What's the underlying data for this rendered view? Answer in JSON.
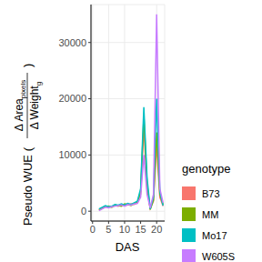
{
  "chart_data": {
    "type": "line",
    "x_label": "DAS",
    "y_label": {
      "prefix": "Pseudo WUE (",
      "numerator": "Δ Area",
      "numerator_sub": "pixels",
      "denominator": "Δ Weight",
      "denominator_sub": "g",
      "suffix": ")"
    },
    "legend_title": "genotype",
    "legend": "right",
    "grid": true,
    "x": [
      2,
      3,
      4,
      5,
      6,
      7,
      8,
      9,
      10,
      11,
      12,
      13,
      14,
      15,
      16,
      17,
      18,
      19,
      20,
      21,
      22
    ],
    "series": [
      {
        "name": "B73",
        "color": "#F8766D",
        "values": [
          300,
          600,
          900,
          700,
          800,
          1000,
          900,
          1200,
          1000,
          1100,
          1300,
          1200,
          1500,
          3000,
          15000,
          4000,
          500,
          1800,
          12000,
          2500,
          900
        ]
      },
      {
        "name": "MM",
        "color": "#7CAE00",
        "values": [
          200,
          500,
          800,
          900,
          700,
          1100,
          1000,
          900,
          1300,
          1200,
          1000,
          1400,
          1600,
          3500,
          17000,
          5000,
          300,
          2000,
          14000,
          3000,
          1200
        ]
      },
      {
        "name": "Mo17",
        "color": "#00BFC4",
        "values": [
          400,
          700,
          1000,
          800,
          900,
          1200,
          1100,
          1300,
          1100,
          1400,
          1200,
          1500,
          1800,
          4000,
          18500,
          6000,
          400,
          2500,
          20000,
          3500,
          1000
        ]
      },
      {
        "name": "W605S",
        "color": "#C77CFF",
        "values": [
          100,
          400,
          700,
          600,
          800,
          900,
          1000,
          1100,
          900,
          1200,
          1100,
          1300,
          1400,
          2500,
          10000,
          3000,
          600,
          3000,
          35000,
          4000,
          1500
        ]
      }
    ],
    "xlim": [
      -0.5,
      22.5
    ],
    "xticks": [
      0,
      5,
      10,
      15,
      20
    ],
    "ylim": [
      -1750,
      36750
    ],
    "yticks": [
      0,
      10000,
      20000,
      30000
    ]
  }
}
